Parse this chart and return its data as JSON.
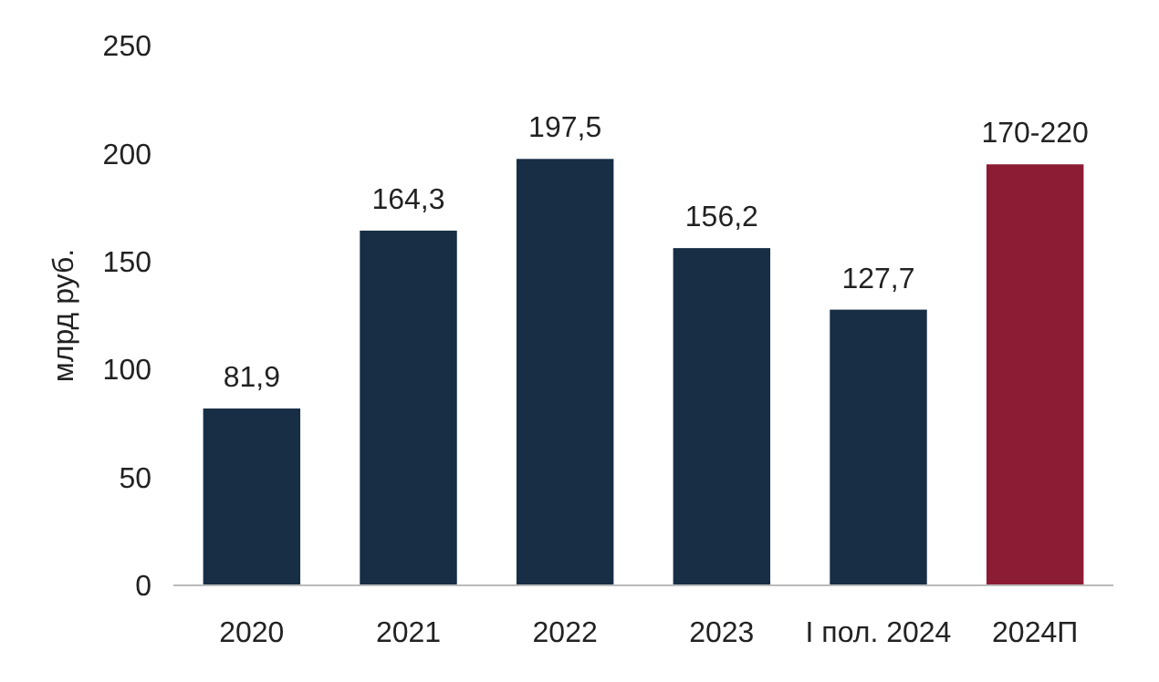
{
  "chart_data": {
    "type": "bar",
    "ylabel": "млрд руб.",
    "categories": [
      "2020",
      "2021",
      "2022",
      "2023",
      "I пол. 2024",
      "2024П"
    ],
    "values": [
      81.9,
      164.3,
      197.5,
      156.2,
      127.7,
      195
    ],
    "colors": [
      "#172e45",
      "#172e45",
      "#172e45",
      "#172e45",
      "#172e45",
      "#8c1c33"
    ],
    "value_labels": [
      "81,9",
      "164,3",
      "197,5",
      "156,2",
      "127,7",
      "170-220"
    ],
    "ylim": [
      0,
      250
    ],
    "yticks": [
      0,
      50,
      100,
      150,
      200,
      250
    ],
    "grid": false
  }
}
